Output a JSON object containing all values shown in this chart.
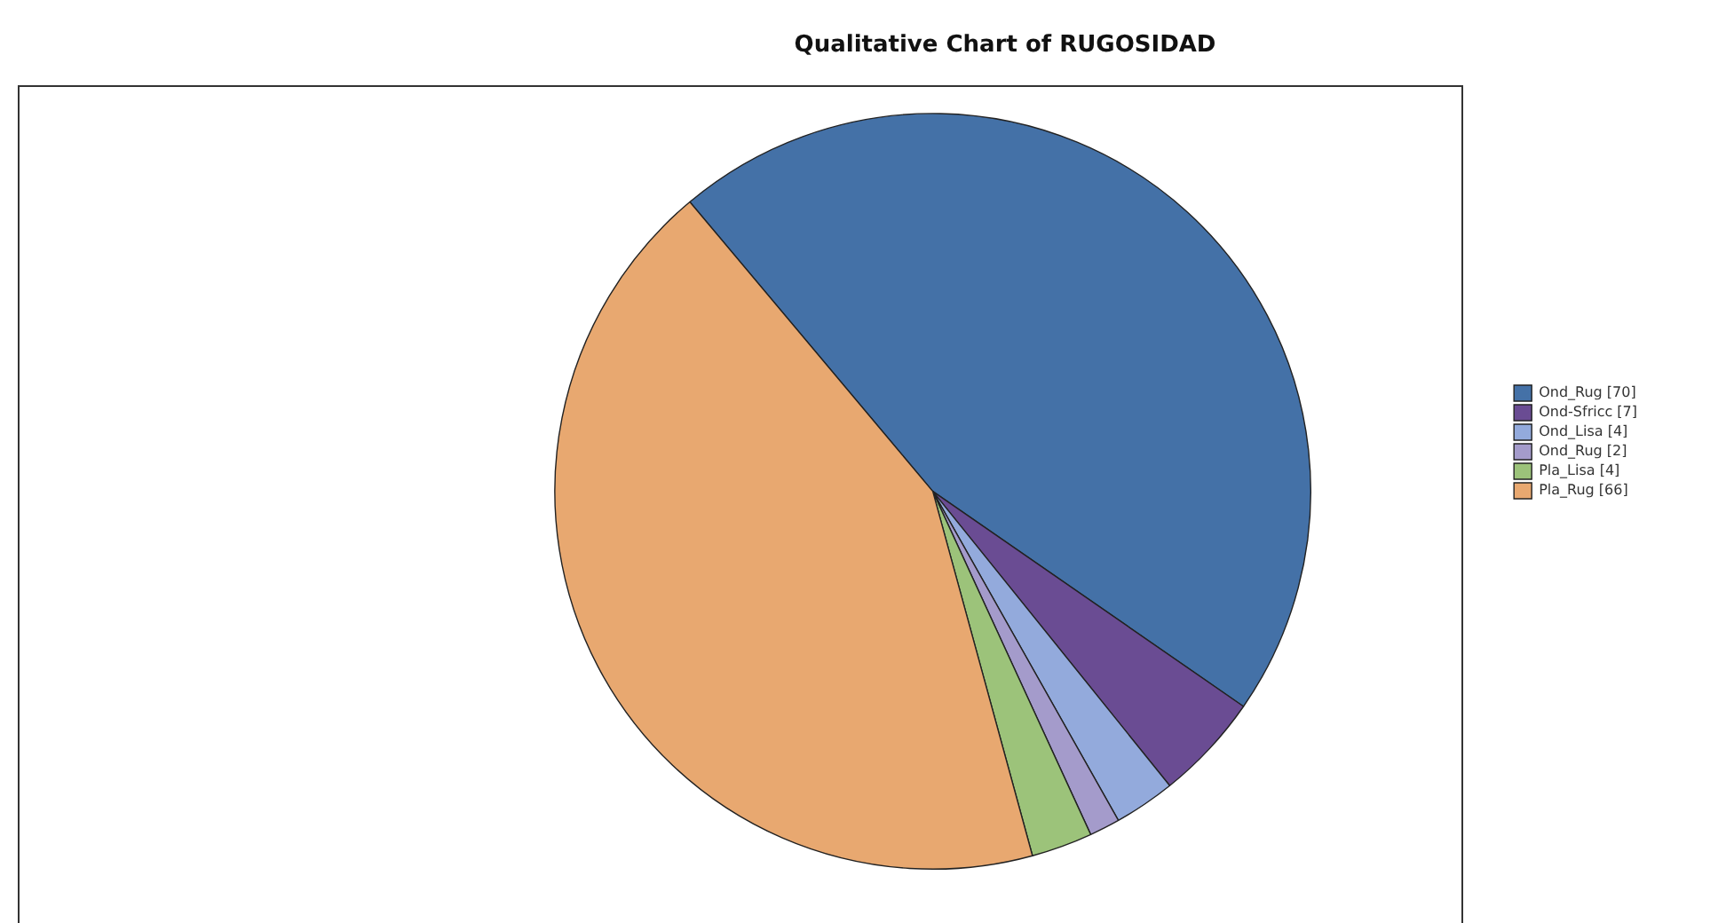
{
  "chart_data": {
    "type": "pie",
    "title": "Qualitative Chart of RUGOSIDAD",
    "categories": [
      "Ond_Rug [70]",
      "Ond-Sfricc [7]",
      "Ond_Lisa [4]",
      "Ond_Rug [2]",
      "Pla_Lisa [4]",
      "Pla_Rug [66]"
    ],
    "values": [
      70,
      7,
      4,
      2,
      4,
      66
    ],
    "colors": [
      "#4471a7",
      "#6a4c93",
      "#93aadc",
      "#a49bcb",
      "#9cc37a",
      "#e8a870"
    ],
    "legend": "right"
  }
}
